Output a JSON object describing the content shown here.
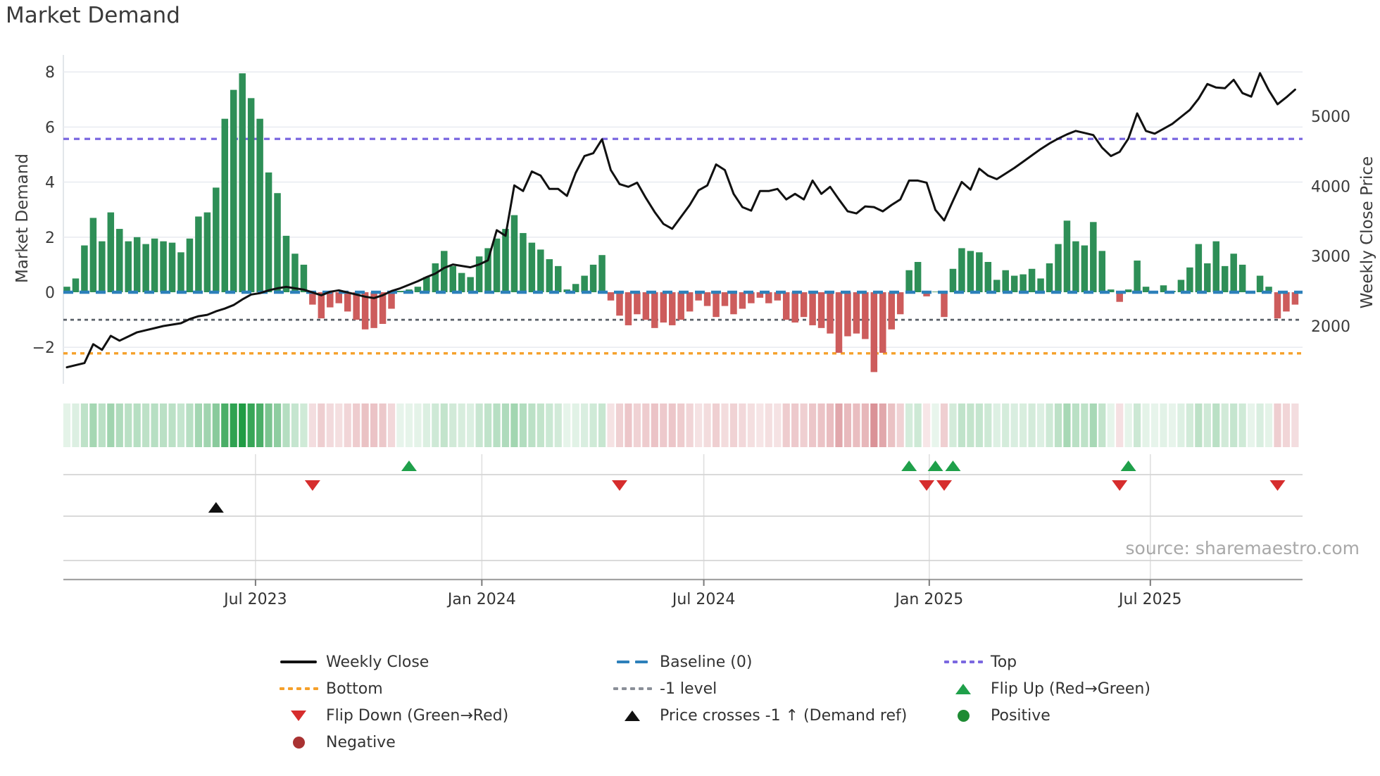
{
  "title": "Market Demand",
  "source_note": "source: sharemaestro.com",
  "chart_data": {
    "type": "combo-bar-line",
    "title": "Market Demand",
    "x_ticks": {
      "labels": [
        "Jul 2023",
        "Jan 2024",
        "Jul 2024",
        "Jan 2025",
        "Jul 2025"
      ],
      "week_positions": [
        21.5,
        47.3,
        72.6,
        98.3,
        123.5
      ]
    },
    "left_axis": {
      "label": "Market Demand",
      "ticks": [
        8,
        6,
        4,
        2,
        0,
        -2
      ],
      "tick_labels": [
        "8",
        "6",
        "4",
        "2",
        "0",
        "−2"
      ],
      "range": [
        -3.3,
        8.6
      ]
    },
    "right_axis": {
      "label": "Weekly Close Price",
      "ticks": [
        5000,
        4000,
        3000,
        2000
      ],
      "tick_labels": [
        "5000",
        "4000",
        "3000",
        "2000"
      ]
    },
    "ref_lines": {
      "top": 5.57,
      "baseline": 0,
      "minus1": -1,
      "bottom": -2.22
    },
    "series": {
      "demand_weekly": [
        0.2,
        0.5,
        1.7,
        2.7,
        1.85,
        2.9,
        2.3,
        1.85,
        2.0,
        1.75,
        1.95,
        1.85,
        1.8,
        1.45,
        1.95,
        2.75,
        2.9,
        3.8,
        6.3,
        7.35,
        7.95,
        7.05,
        6.3,
        4.35,
        3.6,
        2.05,
        1.4,
        1.0,
        -0.45,
        -0.95,
        -0.55,
        -0.4,
        -0.7,
        -1.0,
        -1.35,
        -1.3,
        -1.15,
        -0.6,
        0.05,
        0.1,
        0.2,
        0.55,
        1.05,
        1.5,
        0.95,
        0.7,
        0.55,
        1.3,
        1.6,
        1.95,
        2.3,
        2.8,
        2.15,
        1.8,
        1.55,
        1.2,
        0.95,
        0.1,
        0.3,
        0.6,
        1.0,
        1.35,
        -0.3,
        -0.85,
        -1.2,
        -0.8,
        -1.0,
        -1.3,
        -1.1,
        -1.2,
        -1.0,
        -0.7,
        -0.3,
        -0.5,
        -0.9,
        -0.5,
        -0.8,
        -0.6,
        -0.4,
        -0.2,
        -0.4,
        -0.3,
        -1.0,
        -1.1,
        -0.9,
        -1.2,
        -1.3,
        -1.5,
        -2.2,
        -1.6,
        -1.5,
        -1.7,
        -2.9,
        -2.2,
        -1.35,
        -0.8,
        0.8,
        1.1,
        -0.15,
        0.02,
        -0.9,
        0.85,
        1.6,
        1.5,
        1.45,
        1.1,
        0.45,
        0.8,
        0.6,
        0.65,
        0.85,
        0.5,
        1.05,
        1.75,
        2.6,
        1.85,
        1.7,
        2.55,
        1.5,
        0.1,
        -0.35,
        0.1,
        1.15,
        0.2,
        0.05,
        0.25,
        0.05,
        0.45,
        0.9,
        1.75,
        1.05,
        1.85,
        0.95,
        1.4,
        1.0,
        0.05,
        0.6,
        0.2,
        -0.95,
        -0.7,
        -0.45
      ],
      "weekly_close_price": [
        1410,
        1440,
        1470,
        1740,
        1660,
        1860,
        1790,
        1850,
        1910,
        1940,
        1970,
        2000,
        2020,
        2040,
        2100,
        2140,
        2160,
        2210,
        2250,
        2300,
        2380,
        2450,
        2470,
        2510,
        2540,
        2560,
        2540,
        2520,
        2480,
        2440,
        2490,
        2510,
        2480,
        2450,
        2420,
        2400,
        2440,
        2500,
        2540,
        2590,
        2640,
        2700,
        2750,
        2830,
        2880,
        2860,
        2840,
        2880,
        2940,
        3370,
        3290,
        4010,
        3930,
        4210,
        4150,
        3960,
        3960,
        3860,
        4190,
        4430,
        4470,
        4670,
        4230,
        4030,
        3990,
        4050,
        3830,
        3630,
        3460,
        3390,
        3560,
        3730,
        3940,
        4010,
        4310,
        4230,
        3890,
        3700,
        3650,
        3930,
        3930,
        3960,
        3810,
        3890,
        3810,
        4080,
        3890,
        3990,
        3810,
        3640,
        3610,
        3710,
        3700,
        3640,
        3730,
        3810,
        4080,
        4080,
        4050,
        3660,
        3510,
        3790,
        4060,
        3950,
        4250,
        4150,
        4100,
        4180,
        4260,
        4350,
        4440,
        4530,
        4610,
        4680,
        4740,
        4790,
        4760,
        4730,
        4550,
        4430,
        4490,
        4680,
        5040,
        4790,
        4750,
        4820,
        4890,
        4990,
        5090,
        5250,
        5460,
        5410,
        5400,
        5520,
        5330,
        5280,
        5615,
        5370,
        5170,
        5270,
        5380
      ]
    },
    "markers": {
      "flip_up_weeks": [
        39,
        96,
        99,
        101,
        121
      ],
      "flip_down_weeks": [
        28,
        63,
        98,
        100,
        120,
        138
      ],
      "price_cross_weeks": [
        17
      ]
    }
  },
  "legend": {
    "items": [
      {
        "label": "Weekly Close",
        "swatch": "line",
        "color": "#111111"
      },
      {
        "label": "Baseline (0)",
        "swatch": "dash",
        "color": "#2d80ba"
      },
      {
        "label": "Top",
        "swatch": "dot",
        "color": "#7b68e0"
      },
      {
        "label": "Bottom",
        "swatch": "dot",
        "color": "#f5a02a"
      },
      {
        "label": "-1 level",
        "swatch": "dot",
        "color": "#8a8f98"
      },
      {
        "label": "Flip Up (Red→Green)",
        "swatch": "tri-up",
        "color": "#1fa04a"
      },
      {
        "label": "Flip Down (Green→Red)",
        "swatch": "tri-down",
        "color": "#d62d2d"
      },
      {
        "label": "Price crosses -1 ↑ (Demand ref)",
        "swatch": "tri-up",
        "color": "#111111"
      },
      {
        "label": "Positive",
        "swatch": "circle",
        "color": "#1e8b33"
      },
      {
        "label": "Negative",
        "swatch": "circle",
        "color": "#a93232"
      }
    ]
  },
  "colors": {
    "bar_positive": "#2e8f57",
    "bar_negative": "#cd5c5c",
    "price_line": "#111111",
    "baseline": "#2d80ba",
    "top_line": "#7b68e0",
    "bottom_line": "#f5a02a",
    "minus1_line": "#5a6068",
    "flip_up": "#1fa04a",
    "flip_down": "#d62d2d",
    "price_cross": "#111111",
    "grid": "#e9ecf1",
    "spine": "#d9dde3",
    "panel_line": "#d4d4d4",
    "panel_axis": "#a3a3a3",
    "tick_text": "#3c3c3c",
    "heat_pos_full": "#1f9b43",
    "heat_neg_full": "#d98f94"
  }
}
